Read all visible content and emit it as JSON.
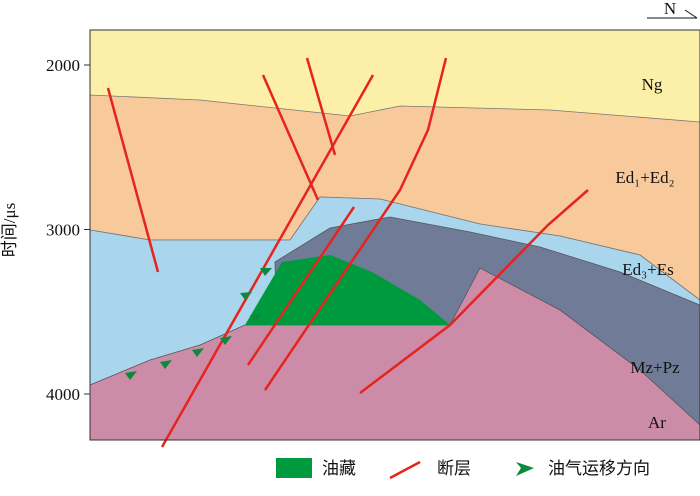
{
  "axis": {
    "label": "时间/μs",
    "ticks": [
      2000,
      3000,
      4000
    ]
  },
  "north": "N",
  "layers": [
    "Ng",
    "Ed₁+Ed₂",
    "Ed₃+Es",
    "Mz+Pz",
    "Ar"
  ],
  "legend": [
    "油藏",
    "断层",
    "油气运移方向"
  ]
}
